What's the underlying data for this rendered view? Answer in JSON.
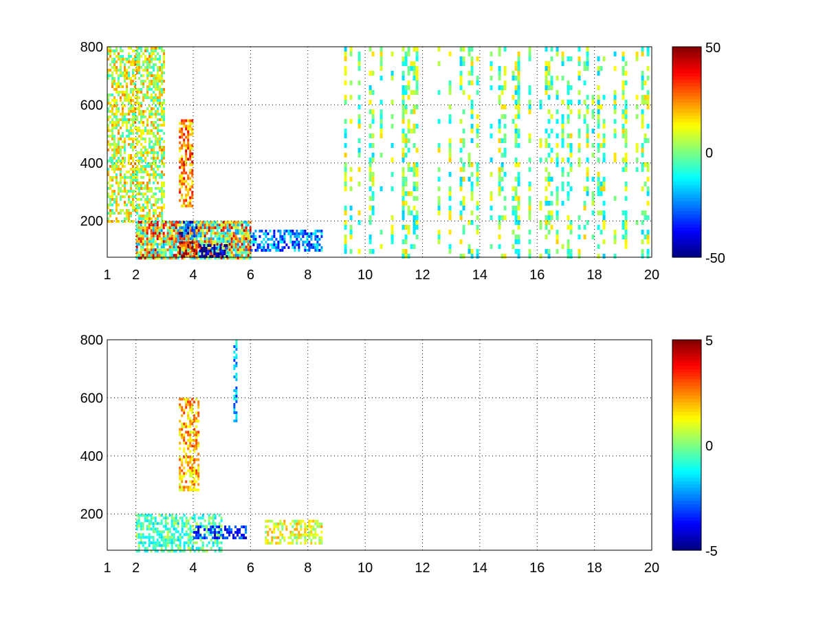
{
  "chart_data": [
    {
      "type": "heatmap",
      "title": "",
      "xlabel": "",
      "ylabel": "",
      "xlim": [
        1,
        20
      ],
      "ylim": [
        75,
        800
      ],
      "x_ticks": [
        1,
        2,
        4,
        6,
        8,
        10,
        12,
        14,
        16,
        18,
        20
      ],
      "y_ticks": [
        200,
        400,
        600,
        800
      ],
      "grid": true,
      "colormap": "jet",
      "clim": [
        -50,
        50
      ],
      "colorbar_ticks": [
        50,
        0,
        -50
      ],
      "background": "#ffffff",
      "regions": [
        {
          "x": [
            2.0,
            6.0
          ],
          "y": [
            75,
            200
          ],
          "value": 10,
          "note": "dense mixed band"
        },
        {
          "x": [
            3.5,
            4.1
          ],
          "y": [
            75,
            130
          ],
          "value": 40
        },
        {
          "x": [
            3.5,
            4.1
          ],
          "y": [
            150,
            200
          ],
          "value": -35
        },
        {
          "x": [
            4.2,
            5.2
          ],
          "y": [
            75,
            120
          ],
          "value": -45
        },
        {
          "x": [
            6.0,
            8.5
          ],
          "y": [
            100,
            170
          ],
          "value": -25
        },
        {
          "x": [
            3.5,
            4.0
          ],
          "y": [
            250,
            550
          ],
          "value": 25
        },
        {
          "x": [
            1.0,
            3.0
          ],
          "y": [
            200,
            800
          ],
          "value": 8
        },
        {
          "x": [
            8.5,
            20.0
          ],
          "y": [
            75,
            800
          ],
          "value": 0,
          "note": "sparse speckle"
        }
      ]
    },
    {
      "type": "heatmap",
      "title": "",
      "xlabel": "",
      "ylabel": "",
      "xlim": [
        1,
        20
      ],
      "ylim": [
        75,
        800
      ],
      "x_ticks": [
        1,
        2,
        4,
        6,
        8,
        10,
        12,
        14,
        16,
        18,
        20
      ],
      "y_ticks": [
        200,
        400,
        600,
        800
      ],
      "grid": true,
      "colormap": "jet",
      "clim": [
        -5,
        5
      ],
      "colorbar_ticks": [
        5,
        0,
        -5
      ],
      "background": "#ffffff",
      "regions": [
        {
          "x": [
            2.0,
            5.0
          ],
          "y": [
            75,
            200
          ],
          "value": -0.5
        },
        {
          "x": [
            4.0,
            5.8
          ],
          "y": [
            120,
            160
          ],
          "value": -3.5
        },
        {
          "x": [
            5.4,
            5.5
          ],
          "y": [
            520,
            800
          ],
          "value": -2
        },
        {
          "x": [
            3.5,
            4.2
          ],
          "y": [
            280,
            600
          ],
          "value": 2
        },
        {
          "x": [
            6.5,
            8.5
          ],
          "y": [
            100,
            180
          ],
          "value": 1
        }
      ]
    }
  ]
}
